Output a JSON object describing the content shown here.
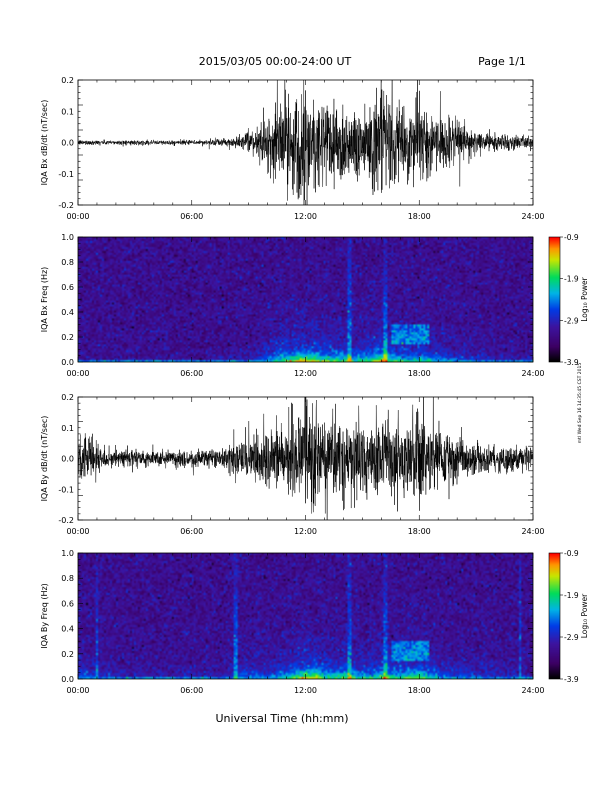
{
  "header": {
    "title": "2015/03/05  00:00-24:00 UT",
    "page": "Page 1/1"
  },
  "footer": {
    "xlabel": "Universal Time (hh:mm)",
    "timestamp": "mtl Wed Sep 16 14:35:45 CST 2015"
  },
  "chart_data": [
    {
      "type": "line",
      "id": "bx-waveform",
      "ylabel": "IQA Bx dB/dt (nT/sec)",
      "xlim": [
        0,
        24
      ],
      "ylim": [
        -0.2,
        0.2
      ],
      "x_ticks": [
        "00:00",
        "06:00",
        "12:00",
        "18:00",
        "24:00"
      ],
      "y_ticks": [
        "-0.2",
        "-0.1",
        "0.0",
        "0.1",
        "0.2"
      ],
      "envelope": {
        "x": [
          0,
          2,
          4,
          6,
          7.5,
          8.5,
          9,
          9.6,
          10,
          10.5,
          11,
          11.5,
          12,
          12.5,
          13,
          13.5,
          14,
          14.5,
          15,
          15.5,
          16,
          16.5,
          17,
          17.5,
          18,
          18.5,
          19,
          19.5,
          20,
          21,
          22,
          23,
          24
        ],
        "amplitude": [
          0.009,
          0.008,
          0.008,
          0.008,
          0.012,
          0.02,
          0.03,
          0.06,
          0.1,
          0.13,
          0.16,
          0.19,
          0.2,
          0.18,
          0.16,
          0.15,
          0.14,
          0.13,
          0.13,
          0.16,
          0.2,
          0.15,
          0.13,
          0.12,
          0.14,
          0.12,
          0.1,
          0.08,
          0.07,
          0.04,
          0.03,
          0.025,
          0.02
        ]
      }
    },
    {
      "type": "heatmap",
      "id": "bx-spectrogram",
      "ylabel": "IQA Bx Freq (Hz)",
      "xlim": [
        0,
        24
      ],
      "ylim": [
        0,
        1.0
      ],
      "x_ticks": [
        "00:00",
        "06:00",
        "12:00",
        "18:00",
        "24:00"
      ],
      "y_ticks": [
        "0.0",
        "0.2",
        "0.4",
        "0.6",
        "0.8",
        "1.0"
      ],
      "colorbar": {
        "label": "Log₁₀ Power",
        "range": [
          -3.9,
          -0.9
        ],
        "ticks": [
          "-0.9",
          "-1.9",
          "-2.9",
          "-3.9"
        ]
      },
      "bright_lines_hours": [
        14.3,
        16.2
      ],
      "pc_band": {
        "hours": [
          16.5,
          18.5
        ],
        "freq_hz": [
          0.15,
          0.3
        ]
      }
    },
    {
      "type": "line",
      "id": "by-waveform",
      "ylabel": "IQA By dB/dt (nT/sec)",
      "xlim": [
        0,
        24
      ],
      "ylim": [
        -0.2,
        0.2
      ],
      "x_ticks": [
        "00:00",
        "06:00",
        "12:00",
        "18:00",
        "24:00"
      ],
      "y_ticks": [
        "-0.2",
        "-0.1",
        "0.0",
        "0.1",
        "0.2"
      ],
      "envelope": {
        "x": [
          0,
          0.3,
          0.8,
          1.5,
          2,
          3,
          4,
          5,
          6,
          7,
          7.8,
          8.2,
          9,
          10,
          11,
          11.5,
          12,
          12.5,
          13,
          13.5,
          14,
          14.5,
          15,
          15.5,
          16,
          16.5,
          17,
          17.5,
          18,
          18.5,
          19,
          20,
          21,
          22,
          23,
          24
        ],
        "amplitude": [
          0.07,
          0.09,
          0.06,
          0.04,
          0.035,
          0.03,
          0.03,
          0.028,
          0.03,
          0.03,
          0.035,
          0.07,
          0.08,
          0.09,
          0.12,
          0.16,
          0.2,
          0.19,
          0.15,
          0.14,
          0.16,
          0.14,
          0.13,
          0.13,
          0.16,
          0.15,
          0.14,
          0.15,
          0.17,
          0.12,
          0.1,
          0.08,
          0.06,
          0.05,
          0.04,
          0.03
        ]
      }
    },
    {
      "type": "heatmap",
      "id": "by-spectrogram",
      "ylabel": "IQA By Freq (Hz)",
      "xlim": [
        0,
        24
      ],
      "ylim": [
        0,
        1.0
      ],
      "x_ticks": [
        "00:00",
        "06:00",
        "12:00",
        "18:00",
        "24:00"
      ],
      "y_ticks": [
        "0.0",
        "0.2",
        "0.4",
        "0.6",
        "0.8",
        "1.0"
      ],
      "colorbar": {
        "label": "Log₁₀ Power",
        "range": [
          -3.9,
          -0.9
        ],
        "ticks": [
          "-0.9",
          "-1.9",
          "-2.9",
          "-3.9"
        ]
      },
      "bright_lines_hours": [
        1.0,
        8.3,
        14.3,
        16.2,
        23.3
      ],
      "pc_band": {
        "hours": [
          16.5,
          18.5
        ],
        "freq_hz": [
          0.15,
          0.3
        ]
      }
    }
  ]
}
